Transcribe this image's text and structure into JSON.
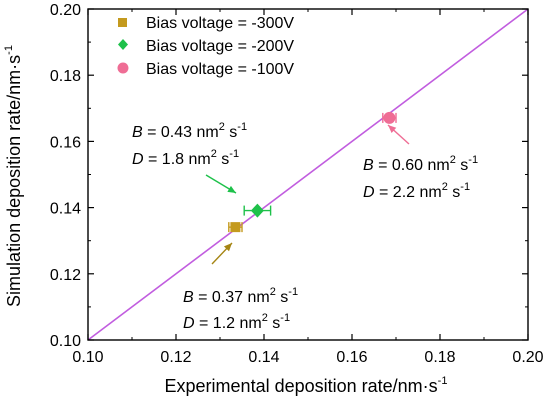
{
  "chart_data": {
    "type": "scatter",
    "title": "",
    "xlabel": "Experimental deposition rate/nm·s",
    "xlabel_sup": "-1",
    "ylabel": "Simulation deposition rate/nm·s",
    "ylabel_sup": "-1",
    "xlim": [
      0.1,
      0.2
    ],
    "ylim": [
      0.1,
      0.2
    ],
    "x_ticks": [
      "0.10",
      "0.12",
      "0.14",
      "0.16",
      "0.18",
      "0.20"
    ],
    "y_ticks": [
      "0.10",
      "0.12",
      "0.14",
      "0.16",
      "0.18",
      "0.20"
    ],
    "grid": false,
    "legend_position": "top-left",
    "reference_line": {
      "from": [
        0.1,
        0.1
      ],
      "to": [
        0.2,
        0.2
      ],
      "color": "#c15ddf"
    },
    "series": [
      {
        "name": "Bias voltage = -300V",
        "marker": "square",
        "color": "#c49a1e",
        "x": 0.1335,
        "y": 0.1341,
        "xerr": 0.0015,
        "annotation": {
          "B_label": "B",
          "B_text": " = 0.37 nm",
          "B_sup": "2",
          "B_unit": " s",
          "B_unit_sup": "-1",
          "D_label": "D",
          "D_text": " = 1.2 nm",
          "D_sup": "2",
          "D_unit": " s",
          "D_unit_sup": "-1",
          "arrow_color": "#a58513"
        }
      },
      {
        "name": "Bias voltage = -200V",
        "marker": "diamond",
        "color": "#1ec14a",
        "x": 0.1385,
        "y": 0.1391,
        "xerr": 0.003,
        "annotation": {
          "B_label": "B",
          "B_text": " = 0.43 nm",
          "B_sup": "2",
          "B_unit": " s",
          "B_unit_sup": "-1",
          "D_label": "D",
          "D_text": " = 1.8 nm",
          "D_sup": "2",
          "D_unit": " s",
          "D_unit_sup": "-1",
          "arrow_color": "#1ec14a"
        }
      },
      {
        "name": "Bias voltage = -100V",
        "marker": "circle",
        "color": "#ef6d95",
        "x": 0.1685,
        "y": 0.1671,
        "xerr": 0.0015,
        "annotation": {
          "B_label": "B",
          "B_text": " = 0.60 nm",
          "B_sup": "2",
          "B_unit": " s",
          "B_unit_sup": "-1",
          "D_label": "D",
          "D_text": " = 2.2 nm",
          "D_sup": "2",
          "D_unit": " s",
          "D_unit_sup": "-1",
          "arrow_color": "#ef6d95"
        }
      }
    ]
  }
}
